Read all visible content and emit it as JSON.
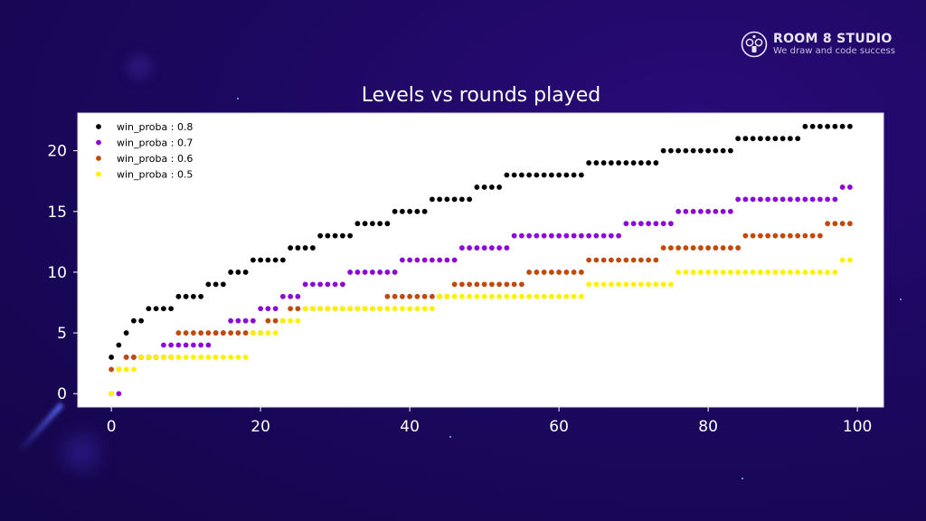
{
  "brand": {
    "name": "ROOM 8 STUDIO",
    "tagline": "We draw and code success"
  },
  "chart_data": {
    "type": "scatter",
    "title": "Levels vs rounds played",
    "xlabel": "",
    "ylabel": "",
    "xlim": [
      -4.5,
      103.5
    ],
    "ylim": [
      -1.1,
      23.1
    ],
    "xticks": [
      0,
      20,
      40,
      60,
      80,
      100
    ],
    "yticks": [
      0,
      5,
      10,
      15,
      20
    ],
    "grid": false,
    "legend_position": "top-left",
    "series": [
      {
        "name": "win_proba : 0.8",
        "color": "#000000",
        "x": [
          0,
          1,
          2,
          3,
          4,
          5,
          6,
          7,
          8,
          9,
          10,
          11,
          12,
          13,
          14,
          15,
          16,
          17,
          18,
          19,
          20,
          21,
          22,
          23,
          24,
          25,
          26,
          27,
          28,
          29,
          30,
          31,
          32,
          33,
          34,
          35,
          36,
          37,
          38,
          39,
          40,
          41,
          42,
          43,
          44,
          45,
          46,
          47,
          48,
          49,
          50,
          51,
          52,
          53,
          54,
          55,
          56,
          57,
          58,
          59,
          60,
          61,
          62,
          63,
          64,
          65,
          66,
          67,
          68,
          69,
          70,
          71,
          72,
          73,
          74,
          75,
          76,
          77,
          78,
          79,
          80,
          81,
          82,
          83,
          84,
          85,
          86,
          87,
          88,
          89,
          90,
          91,
          92,
          93,
          94,
          95,
          96,
          97,
          98,
          99
        ],
        "y": [
          3,
          4,
          5,
          6,
          6,
          7,
          7,
          7,
          7,
          8,
          8,
          8,
          8,
          9,
          9,
          9,
          10,
          10,
          10,
          11,
          11,
          11,
          11,
          11,
          12,
          12,
          12,
          12,
          13,
          13,
          13,
          13,
          13,
          14,
          14,
          14,
          14,
          14,
          15,
          15,
          15,
          15,
          15,
          16,
          16,
          16,
          16,
          16,
          16,
          17,
          17,
          17,
          17,
          18,
          18,
          18,
          18,
          18,
          18,
          18,
          18,
          18,
          18,
          18,
          19,
          19,
          19,
          19,
          19,
          19,
          19,
          19,
          19,
          19,
          20,
          20,
          20,
          20,
          20,
          20,
          20,
          20,
          20,
          20,
          21,
          21,
          21,
          21,
          21,
          21,
          21,
          21,
          21,
          22,
          22,
          22,
          22,
          22,
          22,
          22
        ]
      },
      {
        "name": "win_proba : 0.7",
        "color": "#8c0ad6",
        "x": [
          0,
          1,
          2,
          3,
          4,
          5,
          6,
          7,
          8,
          9,
          10,
          11,
          12,
          13,
          14,
          15,
          16,
          17,
          18,
          19,
          20,
          21,
          22,
          23,
          24,
          25,
          26,
          27,
          28,
          29,
          30,
          31,
          32,
          33,
          34,
          35,
          36,
          37,
          38,
          39,
          40,
          41,
          42,
          43,
          44,
          45,
          46,
          47,
          48,
          49,
          50,
          51,
          52,
          53,
          54,
          55,
          56,
          57,
          58,
          59,
          60,
          61,
          62,
          63,
          64,
          65,
          66,
          67,
          68,
          69,
          70,
          71,
          72,
          73,
          74,
          75,
          76,
          77,
          78,
          79,
          80,
          81,
          82,
          83,
          84,
          85,
          86,
          87,
          88,
          89,
          90,
          91,
          92,
          93,
          94,
          95,
          96,
          97,
          98,
          99
        ],
        "y": [
          0,
          0,
          3,
          3,
          3,
          3,
          3,
          4,
          4,
          4,
          4,
          4,
          4,
          4,
          5,
          5,
          6,
          6,
          6,
          6,
          7,
          7,
          7,
          8,
          8,
          8,
          9,
          9,
          9,
          9,
          9,
          9,
          10,
          10,
          10,
          10,
          10,
          10,
          10,
          11,
          11,
          11,
          11,
          11,
          11,
          11,
          11,
          12,
          12,
          12,
          12,
          12,
          12,
          12,
          13,
          13,
          13,
          13,
          13,
          13,
          13,
          13,
          13,
          13,
          13,
          13,
          13,
          13,
          13,
          14,
          14,
          14,
          14,
          14,
          14,
          14,
          15,
          15,
          15,
          15,
          15,
          15,
          15,
          15,
          16,
          16,
          16,
          16,
          16,
          16,
          16,
          16,
          16,
          16,
          16,
          16,
          16,
          16,
          17,
          17
        ]
      },
      {
        "name": "win_proba : 0.6",
        "color": "#c04a0c",
        "x": [
          0,
          1,
          2,
          3,
          4,
          5,
          6,
          7,
          8,
          9,
          10,
          11,
          12,
          13,
          14,
          15,
          16,
          17,
          18,
          19,
          20,
          21,
          22,
          23,
          24,
          25,
          26,
          27,
          28,
          29,
          30,
          31,
          32,
          33,
          34,
          35,
          36,
          37,
          38,
          39,
          40,
          41,
          42,
          43,
          44,
          45,
          46,
          47,
          48,
          49,
          50,
          51,
          52,
          53,
          54,
          55,
          56,
          57,
          58,
          59,
          60,
          61,
          62,
          63,
          64,
          65,
          66,
          67,
          68,
          69,
          70,
          71,
          72,
          73,
          74,
          75,
          76,
          77,
          78,
          79,
          80,
          81,
          82,
          83,
          84,
          85,
          86,
          87,
          88,
          89,
          90,
          91,
          92,
          93,
          94,
          95,
          96,
          97,
          98,
          99
        ],
        "y": [
          2,
          2,
          3,
          3,
          3,
          3,
          3,
          3,
          3,
          5,
          5,
          5,
          5,
          5,
          5,
          5,
          5,
          5,
          5,
          5,
          5,
          6,
          6,
          6,
          7,
          7,
          7,
          7,
          7,
          7,
          7,
          7,
          7,
          7,
          7,
          7,
          7,
          8,
          8,
          8,
          8,
          8,
          8,
          8,
          8,
          8,
          9,
          9,
          9,
          9,
          9,
          9,
          9,
          9,
          9,
          9,
          10,
          10,
          10,
          10,
          10,
          10,
          10,
          10,
          11,
          11,
          11,
          11,
          11,
          11,
          11,
          11,
          11,
          11,
          12,
          12,
          12,
          12,
          12,
          12,
          12,
          12,
          12,
          12,
          12,
          13,
          13,
          13,
          13,
          13,
          13,
          13,
          13,
          13,
          13,
          13,
          14,
          14,
          14,
          14
        ]
      },
      {
        "name": "win_proba : 0.5",
        "color": "#fff200",
        "x": [
          0,
          1,
          2,
          3,
          4,
          5,
          6,
          7,
          8,
          9,
          10,
          11,
          12,
          13,
          14,
          15,
          16,
          17,
          18,
          19,
          20,
          21,
          22,
          23,
          24,
          25,
          26,
          27,
          28,
          29,
          30,
          31,
          32,
          33,
          34,
          35,
          36,
          37,
          38,
          39,
          40,
          41,
          42,
          43,
          44,
          45,
          46,
          47,
          48,
          49,
          50,
          51,
          52,
          53,
          54,
          55,
          56,
          57,
          58,
          59,
          60,
          61,
          62,
          63,
          64,
          65,
          66,
          67,
          68,
          69,
          70,
          71,
          72,
          73,
          74,
          75,
          76,
          77,
          78,
          79,
          80,
          81,
          82,
          83,
          84,
          85,
          86,
          87,
          88,
          89,
          90,
          91,
          92,
          93,
          94,
          95,
          96,
          97,
          98,
          99
        ],
        "y": [
          0,
          2,
          2,
          2,
          3,
          3,
          3,
          3,
          3,
          3,
          3,
          3,
          3,
          3,
          3,
          3,
          3,
          3,
          3,
          5,
          5,
          5,
          5,
          6,
          6,
          6,
          7,
          7,
          7,
          7,
          7,
          7,
          7,
          7,
          7,
          7,
          7,
          7,
          7,
          7,
          7,
          7,
          7,
          7,
          8,
          8,
          8,
          8,
          8,
          8,
          8,
          8,
          8,
          8,
          8,
          8,
          8,
          8,
          8,
          8,
          8,
          8,
          8,
          8,
          9,
          9,
          9,
          9,
          9,
          9,
          9,
          9,
          9,
          9,
          9,
          9,
          10,
          10,
          10,
          10,
          10,
          10,
          10,
          10,
          10,
          10,
          10,
          10,
          10,
          10,
          10,
          10,
          10,
          10,
          10,
          10,
          10,
          10,
          11,
          11
        ]
      }
    ]
  }
}
